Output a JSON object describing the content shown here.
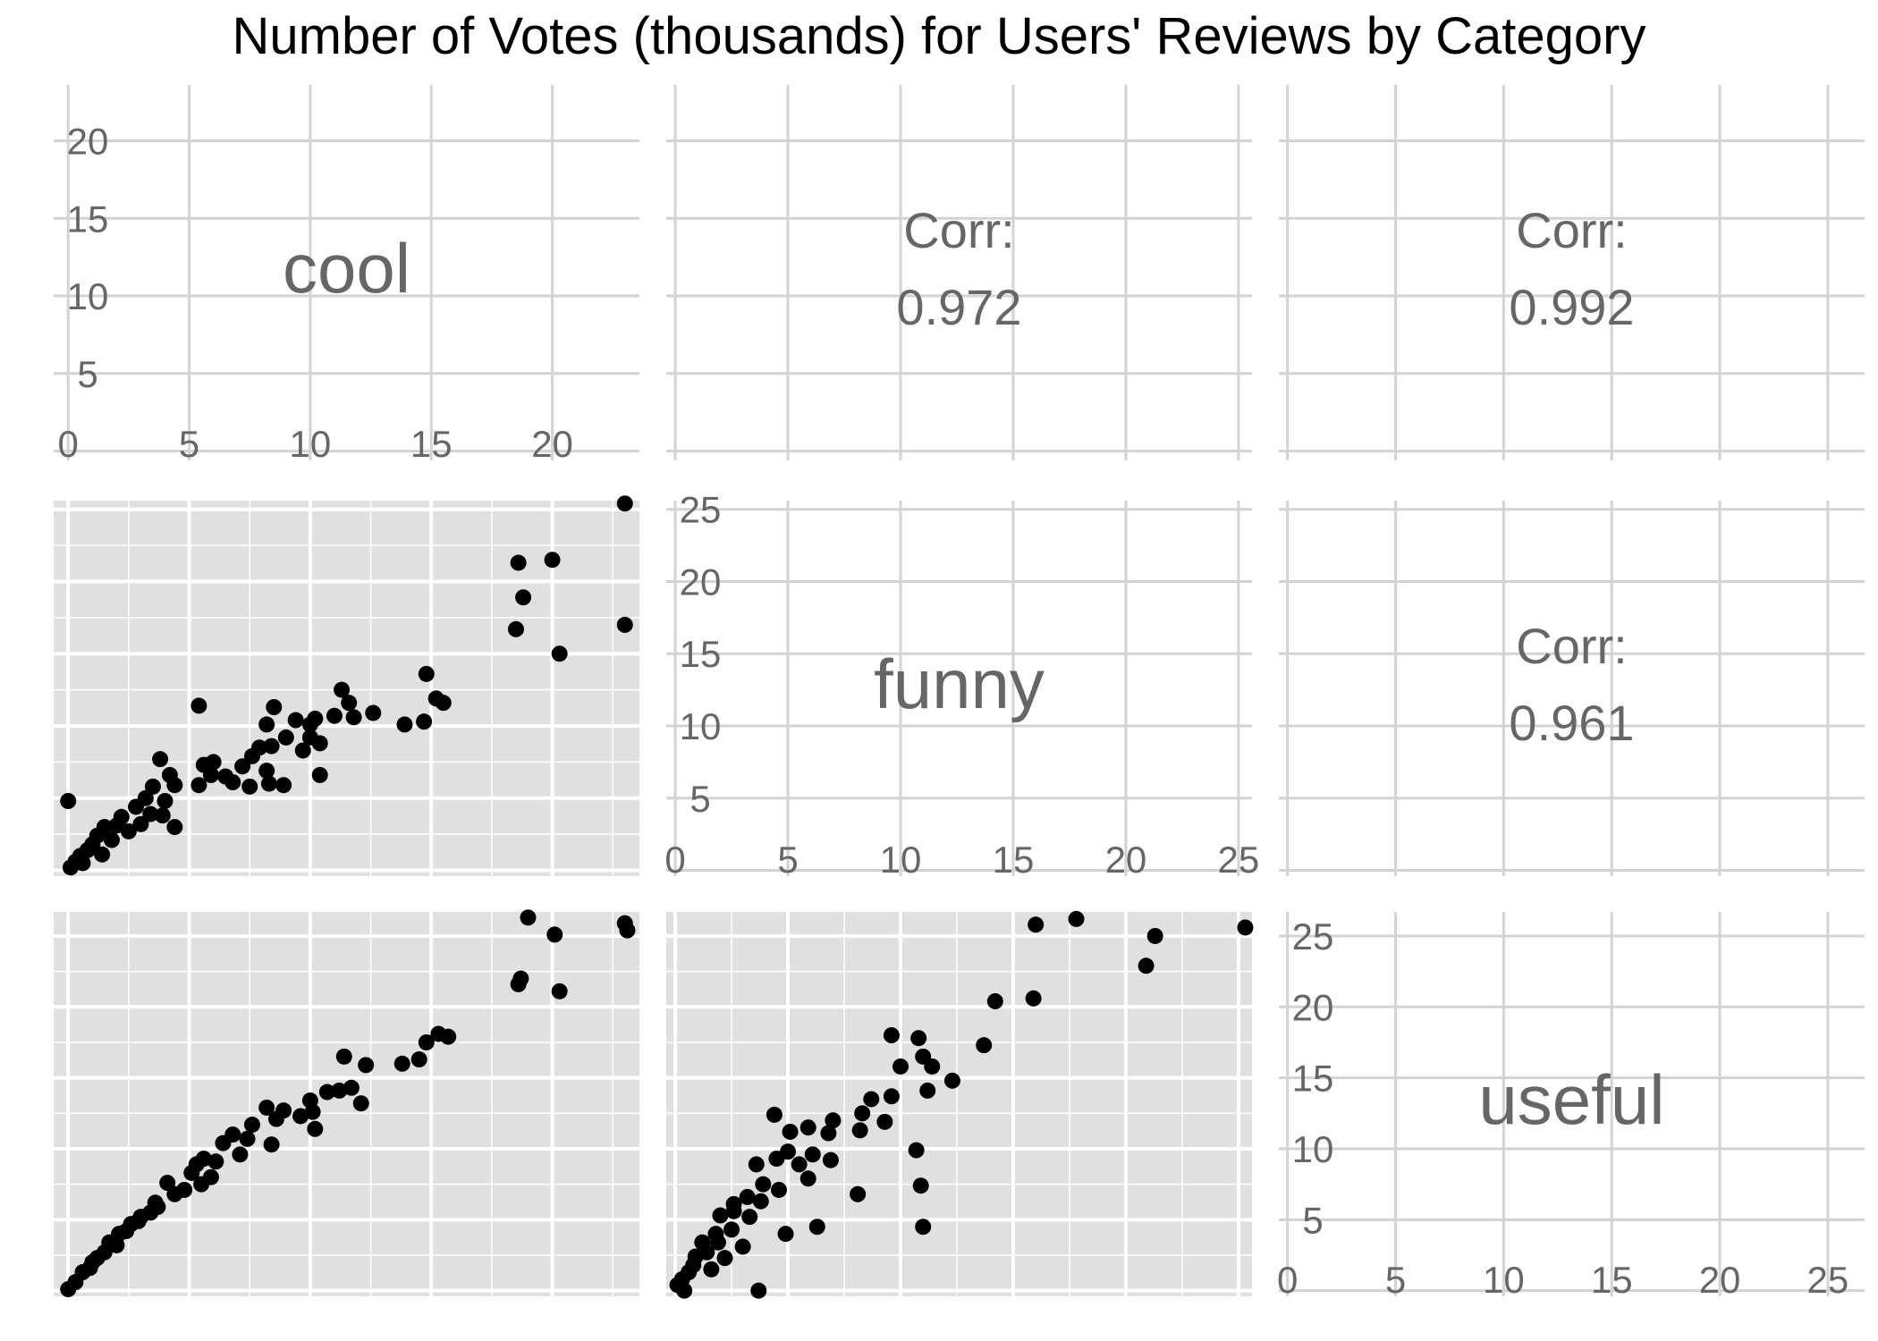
{
  "chart_data": {
    "type": "scatter",
    "title": "Number of Votes (thousands) for Users' Reviews by Category",
    "variables": [
      "cool",
      "funny",
      "useful"
    ],
    "diagonal_ticks": [
      {
        "variable": "cool",
        "ticks": [
          "0",
          "5",
          "10",
          "15",
          "20"
        ],
        "range": [
          -0.6,
          23.6
        ]
      },
      {
        "variable": "funny",
        "ticks": [
          "0",
          "5",
          "10",
          "15",
          "20",
          "25"
        ],
        "range": [
          -0.4,
          25.6
        ]
      },
      {
        "variable": "useful",
        "ticks": [
          "0",
          "5",
          "10",
          "15",
          "20",
          "25"
        ],
        "range": [
          -0.4,
          26.7
        ]
      }
    ],
    "correlations": [
      {
        "x": "funny",
        "y": "cool",
        "label": "Corr:",
        "value": "0.972"
      },
      {
        "x": "useful",
        "y": "cool",
        "label": "Corr:",
        "value": "0.992"
      },
      {
        "x": "useful",
        "y": "funny",
        "label": "Corr:",
        "value": "0.961"
      }
    ],
    "scatter_panels": [
      {
        "x": "cool",
        "y": "funny",
        "xlim": [
          -0.6,
          23.6
        ],
        "ylim": [
          -0.4,
          25.6
        ],
        "points": [
          [
            23,
            25.4
          ],
          [
            20.0,
            21.5
          ],
          [
            18.6,
            21.3
          ],
          [
            18.8,
            18.9
          ],
          [
            18.5,
            16.7
          ],
          [
            23,
            17.0
          ],
          [
            20.3,
            15.0
          ],
          [
            14.8,
            13.6
          ],
          [
            15.2,
            11.9
          ],
          [
            15.5,
            11.6
          ],
          [
            14.7,
            10.3
          ],
          [
            13.9,
            10.1
          ],
          [
            12.6,
            10.9
          ],
          [
            11.3,
            12.5
          ],
          [
            11.6,
            11.6
          ],
          [
            11.8,
            10.6
          ],
          [
            11.0,
            10.7
          ],
          [
            10.2,
            10.5
          ],
          [
            10.0,
            10.1
          ],
          [
            9.4,
            10.4
          ],
          [
            8.5,
            11.3
          ],
          [
            8.2,
            10.1
          ],
          [
            5.4,
            11.4
          ],
          [
            9.0,
            9.2
          ],
          [
            10.0,
            9.2
          ],
          [
            10.4,
            8.8
          ],
          [
            9.7,
            8.3
          ],
          [
            10.4,
            6.6
          ],
          [
            8.4,
            8.6
          ],
          [
            7.9,
            8.5
          ],
          [
            7.6,
            7.9
          ],
          [
            8.2,
            6.9
          ],
          [
            8.9,
            5.9
          ],
          [
            8.3,
            6.0
          ],
          [
            7.5,
            5.8
          ],
          [
            6.8,
            6.1
          ],
          [
            7.2,
            7.2
          ],
          [
            6.0,
            7.5
          ],
          [
            5.6,
            7.3
          ],
          [
            6.5,
            6.5
          ],
          [
            5.9,
            6.6
          ],
          [
            5.4,
            5.9
          ],
          [
            3.8,
            7.7
          ],
          [
            4.2,
            6.6
          ],
          [
            4.4,
            5.9
          ],
          [
            3.5,
            5.8
          ],
          [
            3.2,
            5.0
          ],
          [
            2.8,
            4.4
          ],
          [
            4.0,
            4.8
          ],
          [
            3.9,
            3.8
          ],
          [
            4.4,
            3.0
          ],
          [
            3.0,
            3.2
          ],
          [
            2.2,
            3.7
          ],
          [
            2.0,
            3.1
          ],
          [
            1.5,
            3.0
          ],
          [
            1.2,
            2.4
          ],
          [
            0.0,
            4.8
          ],
          [
            1.8,
            2.1
          ],
          [
            1.0,
            1.8
          ],
          [
            0.8,
            1.4
          ],
          [
            0.5,
            1.0
          ],
          [
            0.3,
            0.6
          ],
          [
            0.1,
            0.2
          ],
          [
            0.6,
            0.5
          ],
          [
            1.4,
            1.1
          ],
          [
            2.5,
            2.7
          ],
          [
            3.4,
            3.9
          ]
        ]
      },
      {
        "x": "cool",
        "y": "useful",
        "xlim": [
          -0.6,
          23.6
        ],
        "ylim": [
          -0.4,
          26.7
        ],
        "points": [
          [
            19.0,
            26.3
          ],
          [
            20.1,
            25.1
          ],
          [
            23,
            25.9
          ],
          [
            23.1,
            25.4
          ],
          [
            18.6,
            21.6
          ],
          [
            18.7,
            22.0
          ],
          [
            20.3,
            21.1
          ],
          [
            14.8,
            17.5
          ],
          [
            15.3,
            18.1
          ],
          [
            14.5,
            16.3
          ],
          [
            13.8,
            16.0
          ],
          [
            15.7,
            17.9
          ],
          [
            12.3,
            15.9
          ],
          [
            11.4,
            16.5
          ],
          [
            11.7,
            14.3
          ],
          [
            12.1,
            13.2
          ],
          [
            11.2,
            14.1
          ],
          [
            10.0,
            13.4
          ],
          [
            10.1,
            12.6
          ],
          [
            10.7,
            14.0
          ],
          [
            9.6,
            12.3
          ],
          [
            10.2,
            11.4
          ],
          [
            8.9,
            12.7
          ],
          [
            8.2,
            12.9
          ],
          [
            8.6,
            12.1
          ],
          [
            8.4,
            10.3
          ],
          [
            7.6,
            11.7
          ],
          [
            6.8,
            11.0
          ],
          [
            6.4,
            10.4
          ],
          [
            7.1,
            9.6
          ],
          [
            5.6,
            9.3
          ],
          [
            5.3,
            8.9
          ],
          [
            5.9,
            8.0
          ],
          [
            5.5,
            7.5
          ],
          [
            4.8,
            7.1
          ],
          [
            4.1,
            7.6
          ],
          [
            3.7,
            5.9
          ],
          [
            3.4,
            5.5
          ],
          [
            3.0,
            5.2
          ],
          [
            2.6,
            4.7
          ],
          [
            2.1,
            4.0
          ],
          [
            1.7,
            3.4
          ],
          [
            2.0,
            3.2
          ],
          [
            1.5,
            2.7
          ],
          [
            1.0,
            2.0
          ],
          [
            0.6,
            1.3
          ],
          [
            0.3,
            0.6
          ],
          [
            0.0,
            0.1
          ],
          [
            0.9,
            1.6
          ],
          [
            1.2,
            2.3
          ],
          [
            2.4,
            4.2
          ],
          [
            2.9,
            4.9
          ],
          [
            3.6,
            6.2
          ],
          [
            4.4,
            6.8
          ],
          [
            5.1,
            8.3
          ],
          [
            6.1,
            9.1
          ],
          [
            7.4,
            10.7
          ]
        ]
      },
      {
        "x": "funny",
        "y": "useful",
        "xlim": [
          -0.4,
          25.6
        ],
        "ylim": [
          -0.4,
          26.7
        ],
        "points": [
          [
            25.3,
            25.6
          ],
          [
            17.8,
            26.2
          ],
          [
            16.0,
            25.8
          ],
          [
            21.3,
            25.0
          ],
          [
            20.9,
            22.9
          ],
          [
            14.2,
            20.4
          ],
          [
            15.9,
            20.6
          ],
          [
            13.7,
            17.3
          ],
          [
            9.6,
            18.0
          ],
          [
            10.8,
            17.8
          ],
          [
            11.0,
            16.5
          ],
          [
            11.4,
            15.8
          ],
          [
            10.0,
            15.8
          ],
          [
            11.2,
            14.1
          ],
          [
            12.3,
            14.8
          ],
          [
            9.6,
            13.7
          ],
          [
            8.7,
            13.5
          ],
          [
            8.3,
            12.5
          ],
          [
            9.3,
            11.9
          ],
          [
            8.2,
            11.3
          ],
          [
            7.0,
            12.0
          ],
          [
            6.8,
            11.1
          ],
          [
            5.9,
            11.5
          ],
          [
            4.4,
            12.4
          ],
          [
            5.1,
            11.2
          ],
          [
            10.7,
            9.9
          ],
          [
            10.9,
            7.4
          ],
          [
            8.1,
            6.8
          ],
          [
            11.0,
            4.5
          ],
          [
            5.0,
            9.8
          ],
          [
            6.1,
            9.6
          ],
          [
            5.5,
            8.9
          ],
          [
            5.9,
            7.9
          ],
          [
            6.9,
            9.2
          ],
          [
            4.5,
            9.3
          ],
          [
            3.6,
            8.9
          ],
          [
            3.9,
            7.5
          ],
          [
            4.6,
            7.1
          ],
          [
            3.8,
            6.3
          ],
          [
            2.6,
            6.1
          ],
          [
            3.2,
            6.6
          ],
          [
            2.6,
            5.6
          ],
          [
            3.3,
            5.2
          ],
          [
            2.0,
            5.3
          ],
          [
            2.5,
            4.3
          ],
          [
            1.8,
            4.0
          ],
          [
            1.9,
            3.4
          ],
          [
            1.2,
            3.4
          ],
          [
            1.4,
            2.7
          ],
          [
            0.9,
            2.4
          ],
          [
            0.8,
            1.8
          ],
          [
            0.6,
            1.3
          ],
          [
            0.3,
            0.8
          ],
          [
            0.1,
            0.4
          ],
          [
            0.4,
            0.0
          ],
          [
            3.7,
            0.0
          ],
          [
            6.3,
            4.5
          ],
          [
            4.9,
            4.0
          ],
          [
            1.6,
            1.5
          ],
          [
            2.2,
            2.3
          ],
          [
            3.0,
            3.1
          ]
        ]
      }
    ],
    "grid": true
  }
}
